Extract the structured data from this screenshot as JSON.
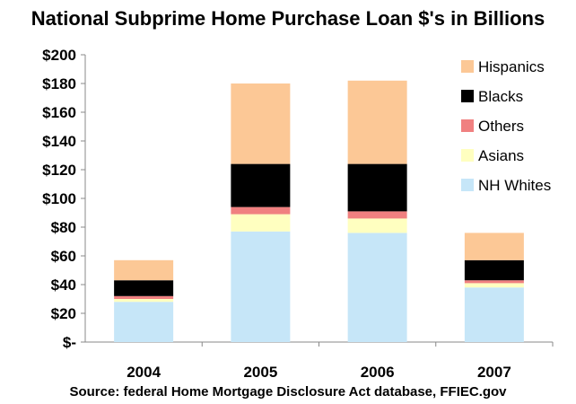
{
  "chart_data": {
    "type": "bar",
    "stacked": true,
    "title": "National Subprime Home Purchase Loan $'s in Billions",
    "source": "Source: federal Home Mortgage Disclosure Act database, FFIEC.gov",
    "categories": [
      "2004",
      "2005",
      "2006",
      "2007"
    ],
    "ylim": [
      0,
      200
    ],
    "yticks": [
      0,
      20,
      40,
      60,
      80,
      100,
      120,
      140,
      160,
      180,
      200
    ],
    "ytick_labels": [
      "$-",
      "$20",
      "$40",
      "$60",
      "$80",
      "$100",
      "$120",
      "$140",
      "$160",
      "$180",
      "$200"
    ],
    "legend_position": "top-right",
    "grid": false,
    "series": [
      {
        "name": "NH Whites",
        "color": "#c6e6f8",
        "values": [
          28,
          77,
          76,
          38
        ]
      },
      {
        "name": "Asians",
        "color": "#ffffc0",
        "values": [
          2,
          12,
          10,
          3
        ]
      },
      {
        "name": "Others",
        "color": "#f08080",
        "values": [
          2,
          5,
          5,
          2
        ]
      },
      {
        "name": "Blacks",
        "color": "#000000",
        "values": [
          11,
          30,
          33,
          14
        ]
      },
      {
        "name": "Hispanics",
        "color": "#fcc896",
        "values": [
          14,
          56,
          58,
          19
        ]
      }
    ]
  }
}
